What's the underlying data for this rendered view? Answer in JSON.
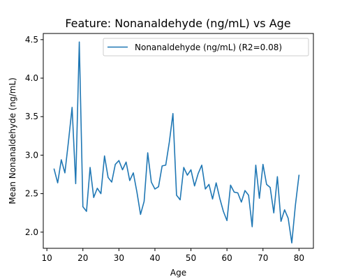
{
  "chart_data": {
    "type": "line",
    "title": "Feature: Nonanaldehyde (ng/mL) vs Age",
    "xlabel": "Age",
    "ylabel": "Mean Nonanaldehyde (ng/mL)",
    "xlim": [
      9,
      84
    ],
    "ylim": [
      1.79,
      4.58
    ],
    "xticks": [
      10,
      20,
      30,
      40,
      50,
      60,
      70,
      80
    ],
    "yticks": [
      2.0,
      2.5,
      3.0,
      3.5,
      4.0,
      4.5
    ],
    "ytick_labels": [
      "2.0",
      "2.5",
      "3.0",
      "3.5",
      "4.0",
      "4.5"
    ],
    "grid": false,
    "legend_position": "top-right",
    "series": [
      {
        "name": "Nonanaldehyde (ng/mL) (R2=0.08)",
        "color": "#1f77b4",
        "x": [
          12,
          13,
          14,
          15,
          16,
          17,
          18,
          19,
          20,
          21,
          22,
          23,
          24,
          25,
          26,
          27,
          28,
          29,
          30,
          31,
          32,
          33,
          34,
          35,
          36,
          37,
          38,
          39,
          40,
          41,
          42,
          43,
          44,
          45,
          46,
          47,
          48,
          49,
          50,
          51,
          52,
          53,
          54,
          55,
          56,
          57,
          58,
          59,
          60,
          61,
          62,
          63,
          64,
          65,
          66,
          67,
          68,
          69,
          70,
          71,
          72,
          73,
          74,
          75,
          76,
          77,
          78,
          79,
          80
        ],
        "y": [
          2.82,
          2.64,
          2.94,
          2.77,
          3.18,
          3.62,
          2.63,
          4.47,
          2.33,
          2.27,
          2.84,
          2.45,
          2.57,
          2.5,
          2.99,
          2.71,
          2.65,
          2.88,
          2.93,
          2.81,
          2.91,
          2.67,
          2.77,
          2.52,
          2.23,
          2.4,
          3.03,
          2.65,
          2.56,
          2.59,
          2.86,
          2.87,
          3.17,
          3.54,
          2.48,
          2.42,
          2.84,
          2.74,
          2.81,
          2.6,
          2.76,
          2.87,
          2.56,
          2.62,
          2.43,
          2.64,
          2.44,
          2.27,
          2.15,
          2.61,
          2.52,
          2.51,
          2.39,
          2.54,
          2.48,
          2.07,
          2.87,
          2.44,
          2.88,
          2.62,
          2.58,
          2.25,
          2.72,
          2.14,
          2.29,
          2.18,
          1.86,
          2.35,
          2.74
        ]
      }
    ]
  }
}
